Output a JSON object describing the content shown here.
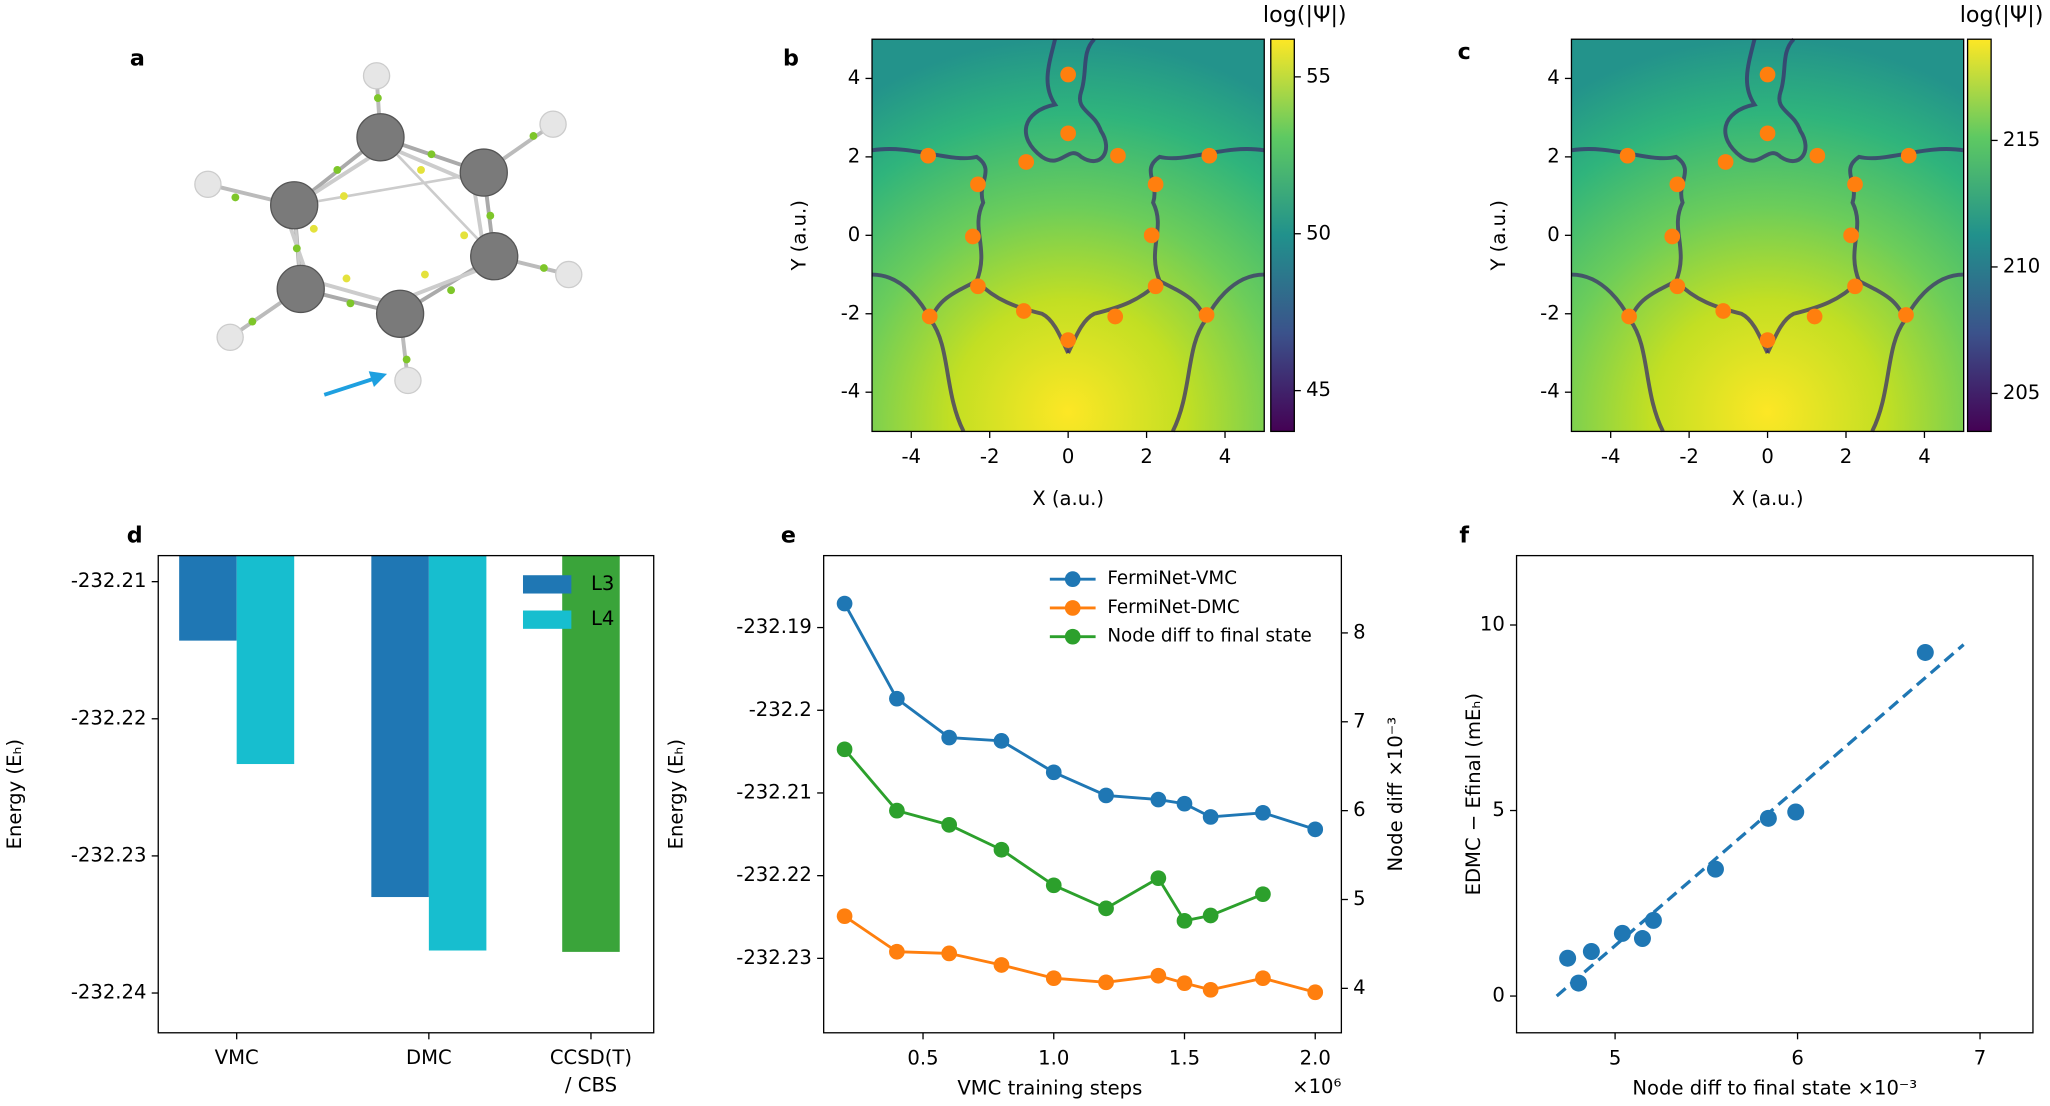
{
  "panel_a": {
    "label": "a"
  },
  "chart_data": [
    {
      "type": "heatmap-scatter",
      "panel": "b",
      "xlabel": "X (a.u.)",
      "ylabel": "Y (a.u.)",
      "xlim": [
        -5,
        5
      ],
      "ylim": [
        -5,
        5
      ],
      "xticks": [
        -4,
        -2,
        0,
        2,
        4
      ],
      "yticks": [
        -4,
        -2,
        0,
        2,
        4
      ],
      "color": "#ff7f0e",
      "x": [
        0,
        0,
        -3.57,
        -1.07,
        1.27,
        3.6,
        -2.3,
        2.23,
        -2.43,
        2.13,
        -2.3,
        2.23,
        -3.53,
        -1.13,
        1.2,
        3.53,
        0
      ],
      "values": [
        4.1,
        2.6,
        2.03,
        1.87,
        2.03,
        2.03,
        1.3,
        1.3,
        -0.03,
        0,
        -1.3,
        -1.3,
        -2.07,
        -1.93,
        -2.07,
        -2.03,
        -2.67
      ],
      "colorbar": {
        "title": "log(|Ψ|)",
        "lim": [
          43.7,
          56.2
        ],
        "ticks": [
          45,
          50,
          55
        ]
      }
    },
    {
      "type": "heatmap-scatter",
      "panel": "c",
      "xlabel": "X (a.u.)",
      "ylabel": "Y (a.u.)",
      "xlim": [
        -5,
        5
      ],
      "ylim": [
        -5,
        5
      ],
      "xticks": [
        -4,
        -2,
        0,
        2,
        4
      ],
      "yticks": [
        -4,
        -2,
        0,
        2,
        4
      ],
      "color": "#ff7f0e",
      "x": [
        0,
        0,
        -3.57,
        -1.07,
        1.27,
        3.6,
        -2.3,
        2.23,
        -2.43,
        2.13,
        -2.3,
        2.23,
        -3.53,
        -1.13,
        1.2,
        3.53,
        0
      ],
      "values": [
        4.1,
        2.6,
        2.03,
        1.87,
        2.03,
        2.03,
        1.3,
        1.3,
        -0.03,
        0,
        -1.3,
        -1.3,
        -2.07,
        -1.93,
        -2.07,
        -2.03,
        -2.67
      ],
      "colorbar": {
        "title": "log(|Ψ|)",
        "lim": [
          203.5,
          219
        ],
        "ticks": [
          205,
          210,
          215
        ]
      }
    },
    {
      "type": "bar",
      "panel": "d",
      "ylabel": "Energy (Eₕ)",
      "categories": [
        "VMC",
        "DMC",
        "CCSD(T)\n/ CBS"
      ],
      "ylim": [
        -232.2429,
        -232.2081
      ],
      "yticks": [
        -232.21,
        -232.22,
        -232.23,
        -232.24
      ],
      "legend": "upper right",
      "series": [
        {
          "name": "L3",
          "color": "#1f77b4",
          "values": [
            -232.2143,
            -232.233,
            null
          ]
        },
        {
          "name": "L4",
          "color": "#17becf",
          "values": [
            -232.2233,
            -232.2369,
            null
          ]
        },
        {
          "color": "#3aa43a",
          "values": [
            null,
            null,
            -232.237
          ]
        }
      ]
    },
    {
      "type": "line",
      "panel": "e",
      "xlabel": "VMC training steps",
      "xoffset": "×10⁶",
      "ylabel": "Energy (Eₕ)",
      "y2label": "Node diff ×10⁻³",
      "x": [
        0.2,
        0.4,
        0.6,
        0.8,
        1.0,
        1.2,
        1.4,
        1.5,
        1.6,
        1.8,
        2.0
      ],
      "xlim": [
        0.12,
        2.1
      ],
      "xticks": [
        0.5,
        {
          "value": 1,
          "label": "1.0"
        },
        1.5,
        {
          "value": 2,
          "label": "2.0"
        }
      ],
      "ylim": [
        -232.239,
        -232.1813
      ],
      "yticks": [
        -232.19,
        -232.2,
        -232.21,
        -232.22,
        -232.23
      ],
      "y2lim": [
        3.5,
        8.87
      ],
      "y2ticks": [
        4,
        5,
        6,
        7,
        8
      ],
      "legend": "upper center",
      "series": [
        {
          "name": "FermiNet-VMC",
          "color": "#1f77b4",
          "values": [
            -232.1871,
            -232.1986,
            -232.2033,
            -232.2037,
            -232.2075,
            -232.2103,
            -232.2108,
            -232.2113,
            -232.2129,
            -232.2124,
            -232.2144
          ]
        },
        {
          "name": "FermiNet-DMC",
          "color": "#ff7f0e",
          "values": [
            -232.2249,
            -232.2292,
            -232.2294,
            -232.2308,
            -232.2324,
            -232.2329,
            -232.2321,
            -232.233,
            -232.2338,
            -232.2324,
            -232.2341
          ]
        },
        {
          "name": "Node diff to final state",
          "color": "#2ca02c",
          "axis": "y2",
          "values": [
            6.69,
            6.0,
            5.84,
            5.56,
            5.16,
            4.9,
            5.24,
            4.76,
            4.82,
            5.06,
            null
          ]
        }
      ]
    },
    {
      "type": "scatter",
      "panel": "f",
      "xlabel": "Node diff to final state ×10⁻³",
      "ylabel": "EDMC − Efinal (mEₕ)",
      "xlim": [
        4.46,
        7.29
      ],
      "ylim": [
        -0.99,
        11.87
      ],
      "xticks": [
        5,
        6,
        7
      ],
      "yticks": [
        0,
        5,
        10
      ],
      "color": "#1f77b4",
      "x": [
        4.74,
        4.8,
        4.87,
        5.04,
        5.15,
        5.21,
        5.55,
        5.84,
        5.99,
        6.7
      ],
      "values": [
        1.02,
        0.35,
        1.2,
        1.69,
        1.55,
        2.04,
        3.42,
        4.79,
        4.96,
        9.26
      ],
      "fit": {
        "x": [
          4.68,
          6.91
        ],
        "values": [
          0.0,
          9.47
        ]
      }
    }
  ]
}
